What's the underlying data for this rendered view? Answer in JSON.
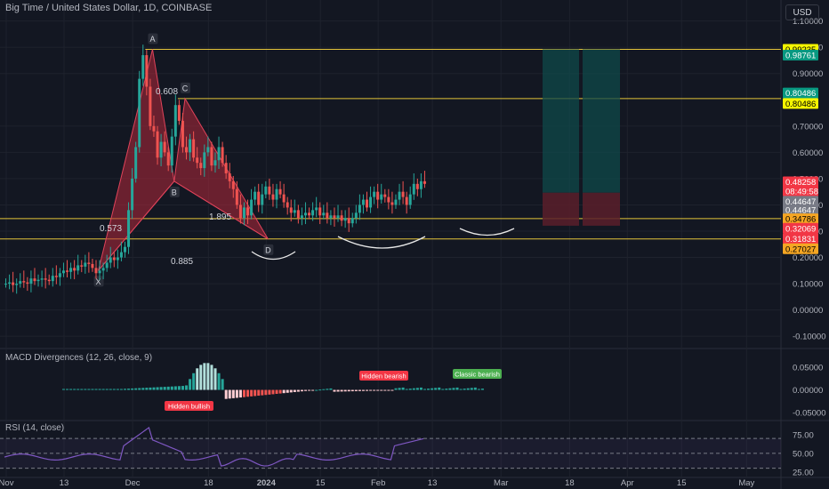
{
  "header": {
    "title": "Big Time / United States Dollar, 1D, COINBASE",
    "currency_button": "USD"
  },
  "colors": {
    "bg": "#131722",
    "up": "#26a69a",
    "down": "#ef5350",
    "level_line": "#e3c43a",
    "pattern_fill": "#b2283a",
    "grid": "#1e222d"
  },
  "chart_data": [
    {
      "type": "candlestick",
      "title": "Big Time / United States Dollar, 1D, COINBASE",
      "y_axis_ticks": [
        "1.00000",
        "0.90000",
        "0.70000",
        "0.60000",
        "0.50000",
        "0.40000",
        "0.30000",
        "0.20000",
        "0.10000",
        "0.00000",
        "-0.10000",
        "1.10000"
      ],
      "ylim": [
        -0.14,
        1.18
      ],
      "x_axis_ticks": [
        "Nov",
        "13",
        "Dec",
        "18",
        "2024",
        "15",
        "Feb",
        "13",
        "Mar",
        "18",
        "Apr",
        "15",
        "May"
      ],
      "grid": true,
      "price_tags": [
        {
          "value": "0.99235",
          "color": "#f5f500",
          "text_color": "#000000",
          "y": 0.99235
        },
        {
          "value": "0.98761",
          "color": "#089981",
          "text_color": "#ffffff",
          "y": 0.97
        },
        {
          "value": "0.80486",
          "color": "#089981",
          "text_color": "#ffffff",
          "y": 0.826
        },
        {
          "value": "0.80486",
          "color": "#f5f500",
          "text_color": "#000000",
          "y": 0.786
        },
        {
          "value": "0.48258",
          "color": "#f23645",
          "text_color": "#ffffff",
          "y": 0.488
        },
        {
          "value": "08:49:58",
          "color": "#f23645",
          "text_color": "#ffffff",
          "y": 0.453
        },
        {
          "value": "0.44647",
          "color": "#787b86",
          "text_color": "#ffffff",
          "y": 0.414
        },
        {
          "value": "0.44647",
          "color": "#787b86",
          "text_color": "#ffffff",
          "y": 0.381
        },
        {
          "value": "0.34786",
          "color": "#f5a623",
          "text_color": "#000000",
          "y": 0.347
        },
        {
          "value": "0.32069",
          "color": "#f23645",
          "text_color": "#ffffff",
          "y": 0.311
        },
        {
          "value": "0.31831",
          "color": "#f23645",
          "text_color": "#ffffff",
          "y": 0.272
        },
        {
          "value": "0.27027",
          "color": "#f5a623",
          "text_color": "#000000",
          "y": 0.233
        }
      ],
      "horizontal_levels": [
        0.99235,
        0.80486,
        0.34786,
        0.27027
      ],
      "harmonic_pattern": {
        "points": [
          {
            "label": "X",
            "value": 0.15
          },
          {
            "label": "A",
            "value": 0.99235
          },
          {
            "label": "B",
            "value": 0.49
          },
          {
            "label": "C",
            "value": 0.80486
          },
          {
            "label": "D",
            "value": 0.27
          }
        ],
        "ratios": [
          "0.608",
          "0.573",
          "1.895",
          "0.885"
        ]
      },
      "position_zones": [
        {
          "top": 0.99235,
          "entry": 0.44647,
          "stop": 0.32069
        },
        {
          "top": 0.99235,
          "entry": 0.44647,
          "stop": 0.32069
        }
      ]
    },
    {
      "type": "bar",
      "title": "MACD Divergences (12, 26, close, 9)",
      "y_axis_ticks": [
        "0.05000",
        "0.00000",
        "-0.05000"
      ],
      "ylim": [
        -0.062,
        0.072
      ],
      "labels": [
        {
          "text": "Hidden bearish",
          "color": "#f23645"
        },
        {
          "text": "Classic bearish",
          "color": "#4caf50"
        },
        {
          "text": "Hidden bullish",
          "color": "#f23645"
        }
      ]
    },
    {
      "type": "line",
      "title": "RSI (14, close)",
      "y_axis_ticks": [
        "75.00",
        "50.00",
        "25.00"
      ],
      "ylim": [
        20,
        88
      ],
      "band": [
        30,
        70
      ]
    }
  ]
}
